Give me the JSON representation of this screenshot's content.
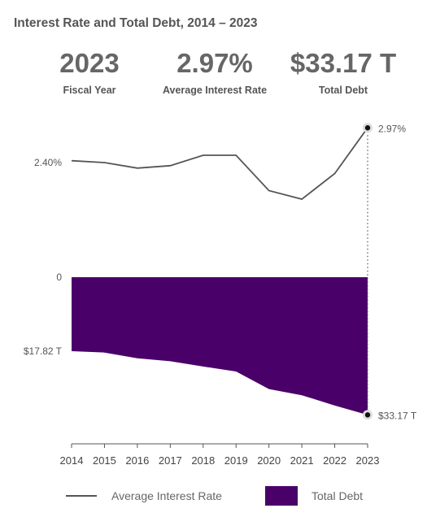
{
  "title": "Interest Rate and Total Debt, 2014 – 2023",
  "stats": [
    {
      "value": "2023",
      "label": "Fiscal Year"
    },
    {
      "value": "2.97%",
      "label": "Average Interest Rate"
    },
    {
      "value": "$33.17 T",
      "label": "Total Debt"
    }
  ],
  "colors": {
    "line": "#555555",
    "area": "#4a0069",
    "text": "#555555"
  },
  "chart_data": {
    "type": "line+area",
    "x": [
      2014,
      2015,
      2016,
      2017,
      2018,
      2019,
      2020,
      2021,
      2022,
      2023
    ],
    "series": [
      {
        "name": "Average Interest Rate",
        "unit": "%",
        "values": [
          2.43,
          2.4,
          2.31,
          2.35,
          2.52,
          2.52,
          1.94,
          1.8,
          2.22,
          2.97
        ]
      },
      {
        "name": "Total Debt",
        "unit": "$T",
        "values": [
          17.82,
          18.15,
          19.54,
          20.24,
          21.52,
          22.72,
          26.95,
          28.43,
          30.93,
          33.17
        ]
      }
    ],
    "rate_tick_label": "2.40%",
    "rate_tick_value": 2.4,
    "debt_tick_labels": [
      {
        "value": 0,
        "label": "0"
      },
      {
        "value": 17.82,
        "label": "$17.82 T"
      }
    ],
    "end_labels": {
      "rate": "2.97%",
      "debt": "$33.17 T"
    },
    "grid": false,
    "legend_position": "bottom"
  },
  "legend": [
    {
      "label": "Average Interest Rate"
    },
    {
      "label": "Total Debt"
    }
  ]
}
